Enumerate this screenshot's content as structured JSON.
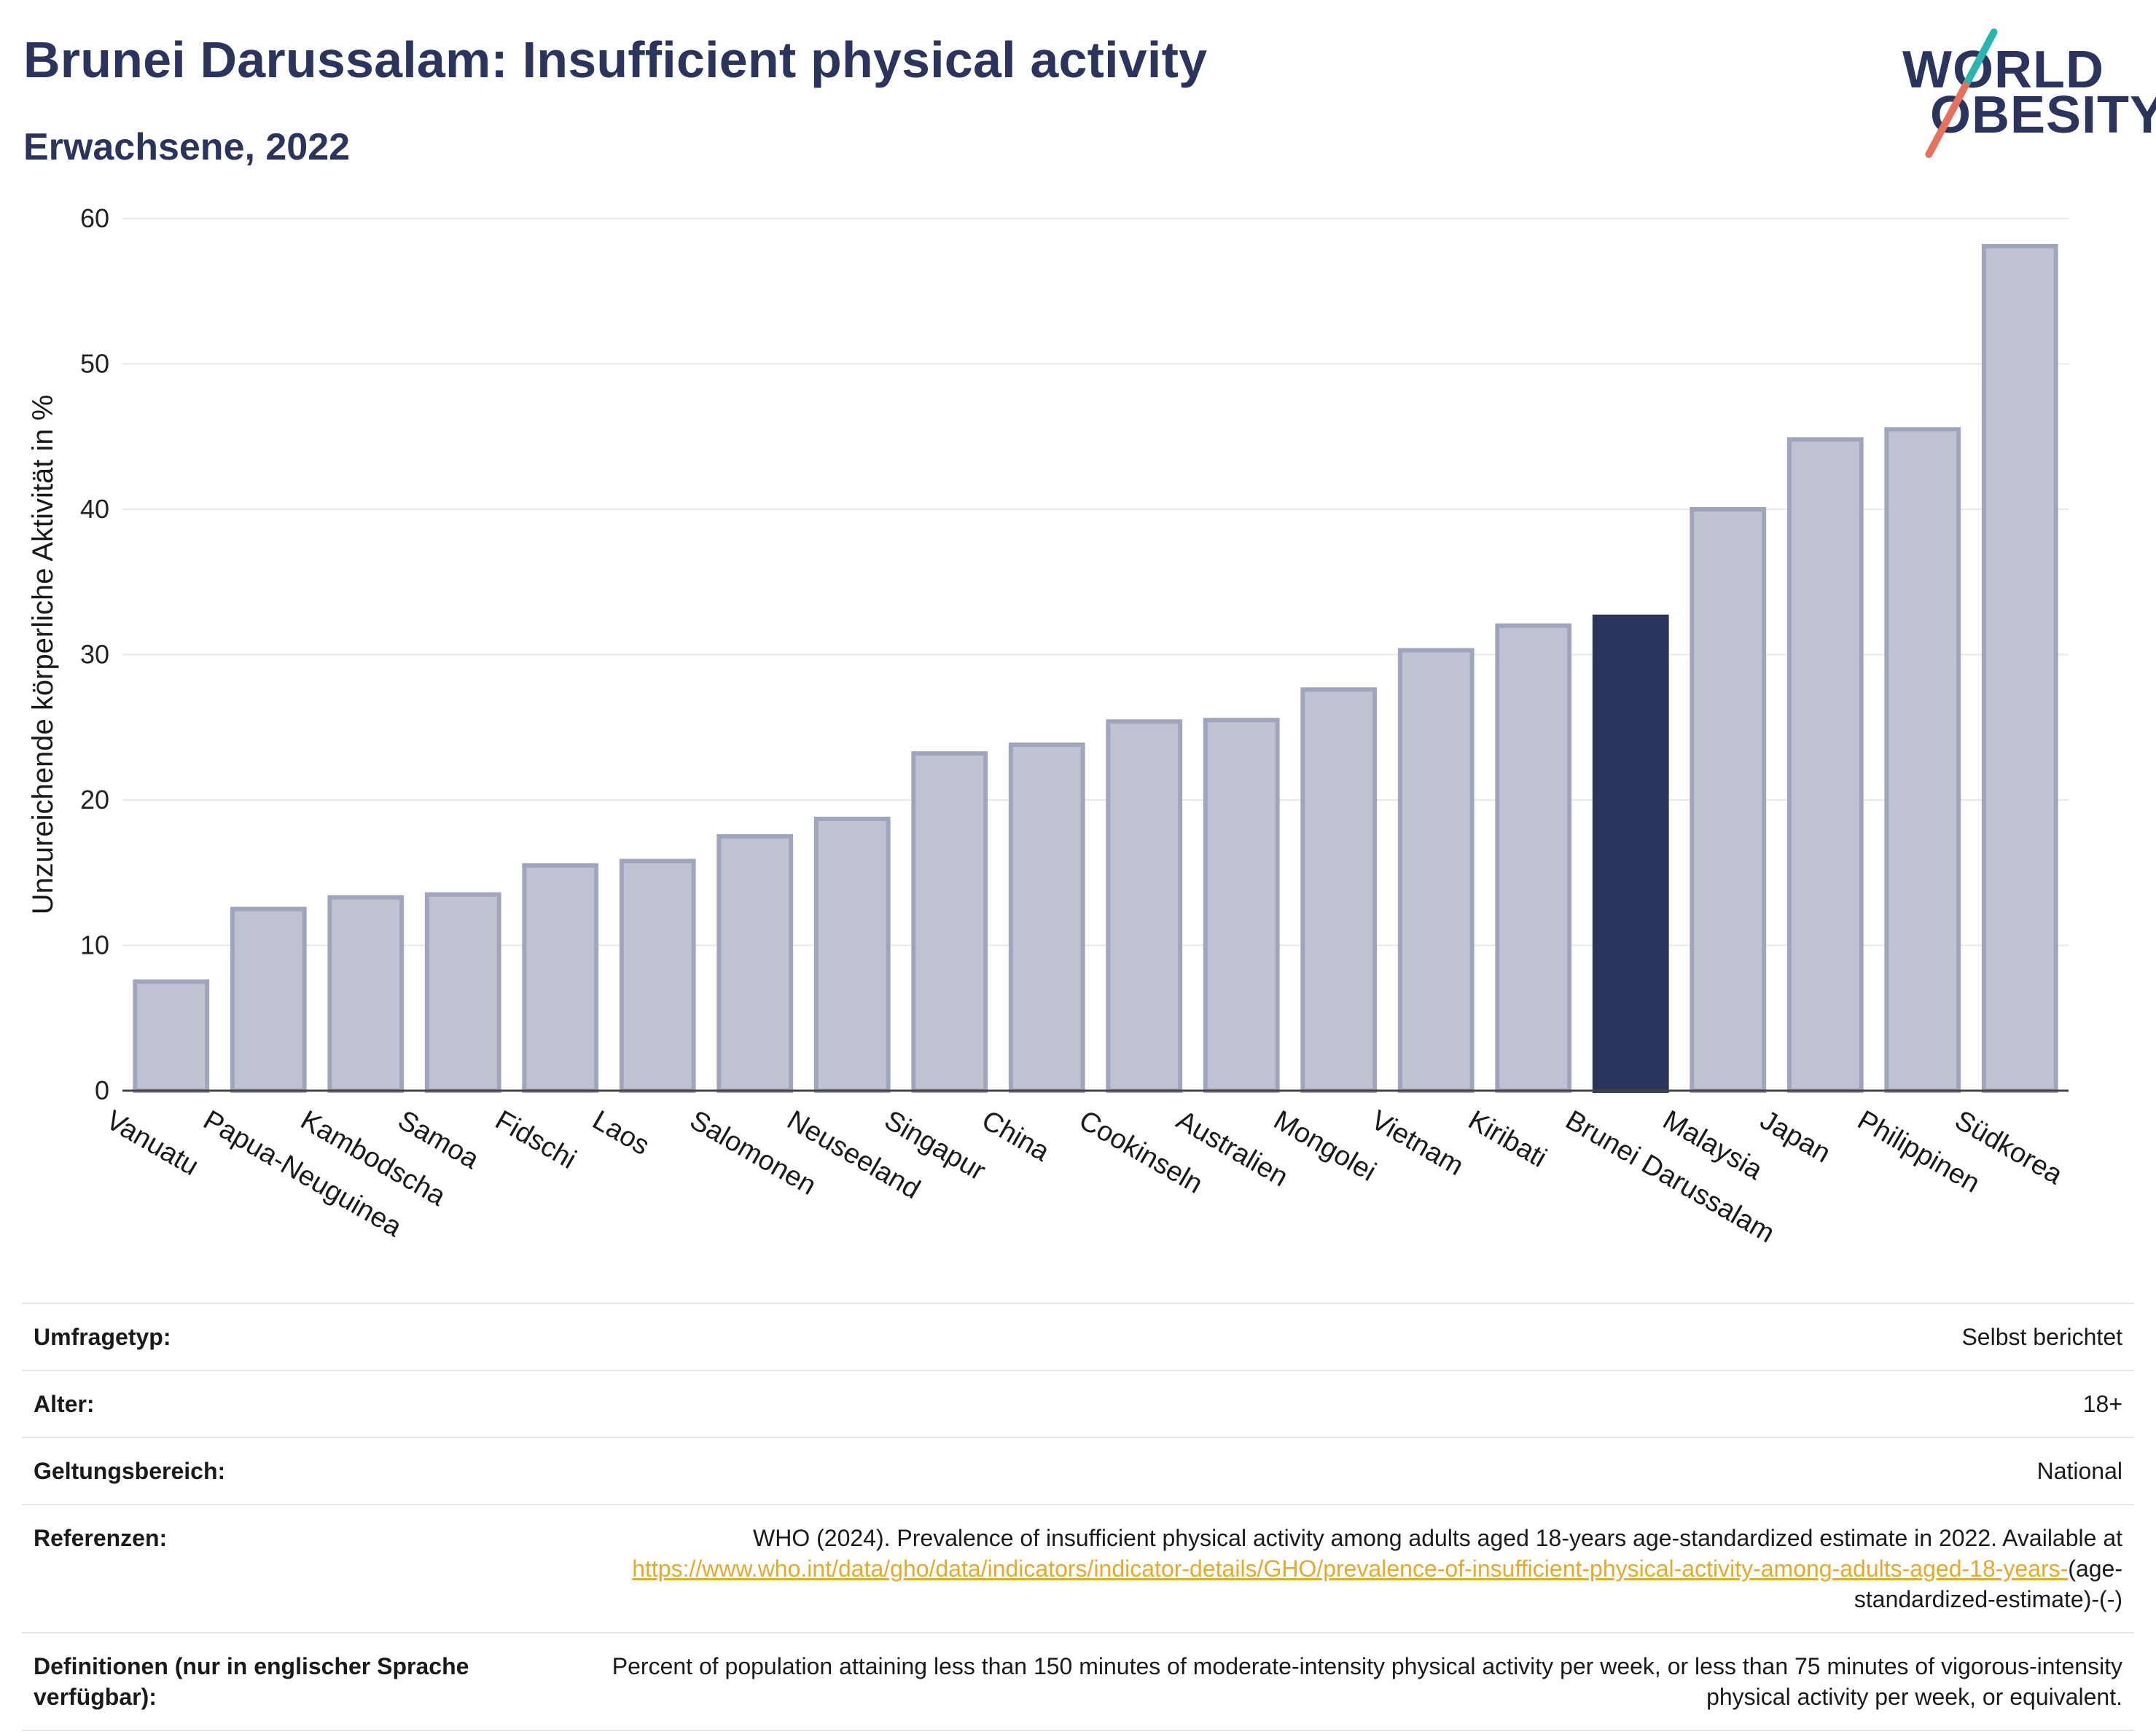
{
  "header": {
    "title": "Brunei Darussalam: Insufficient physical activity",
    "subtitle": "Erwachsene, 2022"
  },
  "logo": {
    "line1": "WORLD",
    "line2": "OBESITY"
  },
  "colors": {
    "highlight": "#2a345d",
    "bar_fill": "#bfc3d1",
    "bar_stroke": "#9ea5bd",
    "grid": "#e8e8e8",
    "link": "#e7a92b"
  },
  "chart_data": {
    "type": "bar",
    "title": "",
    "xlabel": "",
    "ylabel": "Unzureichende körperliche Aktivität in %",
    "ylim": [
      0,
      60
    ],
    "yticks": [
      0,
      10,
      20,
      30,
      40,
      50,
      60
    ],
    "grid": true,
    "highlight": "Brunei Darussalam",
    "categories": [
      "Vanuatu",
      "Papua-Neuguinea",
      "Kambodscha",
      "Samoa",
      "Fidschi",
      "Laos",
      "Salomonen",
      "Neuseeland",
      "Singapur",
      "China",
      "Cookinseln",
      "Australien",
      "Mongolei",
      "Vietnam",
      "Kiribati",
      "Brunei Darussalam",
      "Malaysia",
      "Japan",
      "Philippinen",
      "Südkorea"
    ],
    "values": [
      7.5,
      12.5,
      13.3,
      13.5,
      15.5,
      15.8,
      17.5,
      18.7,
      23.2,
      23.8,
      25.4,
      25.5,
      27.6,
      30.3,
      32.0,
      32.6,
      40.0,
      44.8,
      45.5,
      58.1
    ]
  },
  "meta": {
    "survey_label": "Umfragetyp:",
    "survey_value": "Selbst berichtet",
    "age_label": "Alter:",
    "age_value": "18+",
    "scope_label": "Geltungsbereich:",
    "scope_value": "National",
    "ref_label": "Referenzen:",
    "ref_text": "WHO (2024). Prevalence of insufficient physical activity among adults aged 18-years age-standardized estimate in 2022. Available at",
    "ref_link": "https://www.who.int/data/gho/data/indicators/indicator-details/GHO/prevalence-of-insufficient-physical-activity-among-adults-aged-18-years-",
    "ref_suffix": "(age-standardized-estimate)-(-)",
    "def_label": "Definitionen (nur in englischer Sprache verfügbar):",
    "def_value": "Percent of population attaining less than 150 minutes of moderate-intensity physical activity per week, or less than 75 minutes of vigorous-intensity physical activity per week, or equivalent."
  }
}
